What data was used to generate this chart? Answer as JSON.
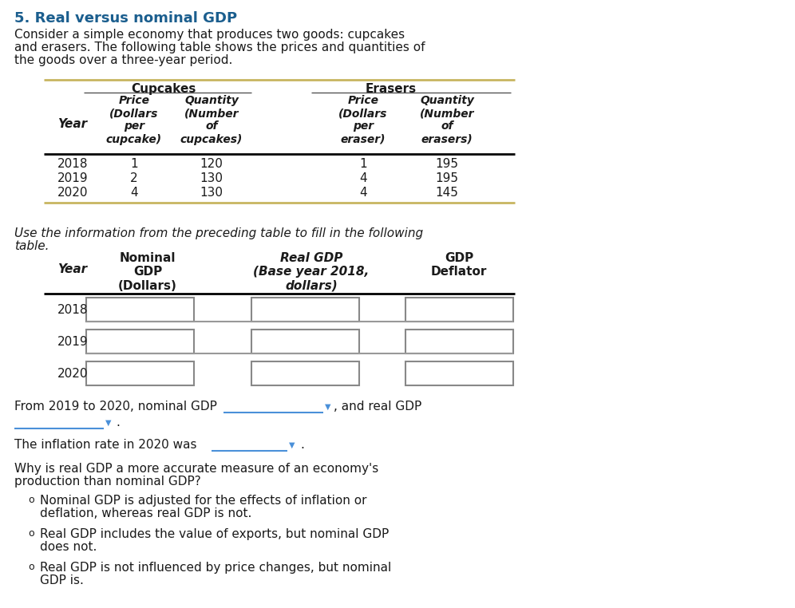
{
  "title": "5. Real versus nominal GDP",
  "title_color": "#1b5e8e",
  "bg_color": "#ffffff",
  "intro_text1": "Consider a simple economy that produces two goods: cupcakes",
  "intro_text2": "and erasers. The following table shows the prices and quantities of",
  "intro_text3": "the goods over a three-year period.",
  "table1_years": [
    "2018",
    "2019",
    "2020"
  ],
  "table1_data": [
    [
      1,
      120,
      1,
      195
    ],
    [
      2,
      130,
      4,
      195
    ],
    [
      4,
      130,
      4,
      145
    ]
  ],
  "middle_text1": "Use the information from the preceding table to fill in the following",
  "middle_text2": "table.",
  "table2_years": [
    "2018",
    "2019",
    "2020"
  ],
  "text_color": "#1a1a1a",
  "table_line_color_top": "#c8b560",
  "table_line_color_black": "#000000",
  "input_box_color": "#808080",
  "dropdown_color": "#4a90d9"
}
